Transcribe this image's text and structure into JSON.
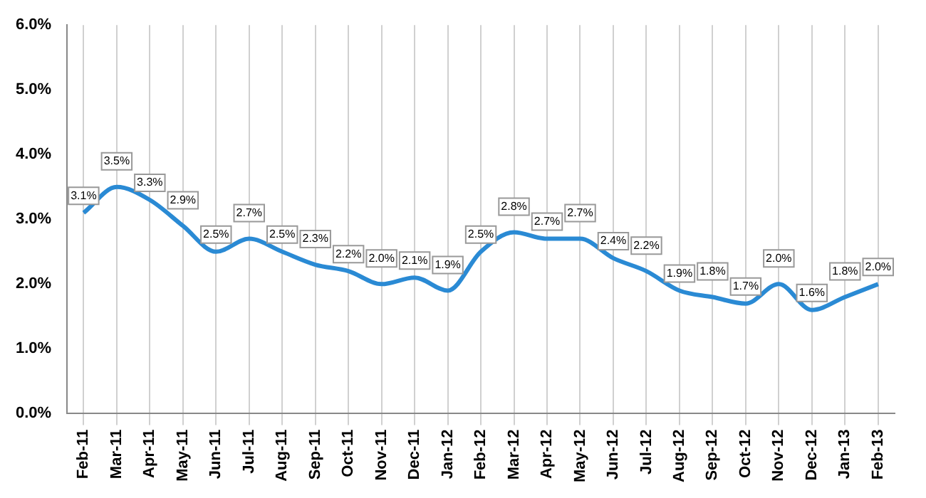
{
  "chart_data": {
    "type": "line",
    "categories": [
      "Feb-11",
      "Mar-11",
      "Apr-11",
      "May-11",
      "Jun-11",
      "Jul-11",
      "Aug-11",
      "Sep-11",
      "Oct-11",
      "Nov-11",
      "Dec-11",
      "Jan-12",
      "Feb-12",
      "Mar-12",
      "Apr-12",
      "May-12",
      "Jun-12",
      "Jul-12",
      "Aug-12",
      "Sep-12",
      "Oct-12",
      "Nov-12",
      "Dec-12",
      "Jan-13",
      "Feb-13"
    ],
    "series": [
      {
        "color": "#2a8ad4",
        "values": [
          3.1,
          3.5,
          3.3,
          2.9,
          2.5,
          2.7,
          2.5,
          2.3,
          2.2,
          2.0,
          2.1,
          1.9,
          2.5,
          2.8,
          2.7,
          2.7,
          2.4,
          2.2,
          1.9,
          1.8,
          1.7,
          2.0,
          1.6,
          1.8,
          2.0
        ],
        "value_labels": [
          "3.1%",
          "3.5%",
          "3.3%",
          "2.9%",
          "2.5%",
          "2.7%",
          "2.5%",
          "2.3%",
          "2.2%",
          "2.0%",
          "2.1%",
          "1.9%",
          "2.5%",
          "2.8%",
          "2.7%",
          "2.7%",
          "2.4%",
          "2.2%",
          "1.9%",
          "1.8%",
          "1.7%",
          "2.0%",
          "1.6%",
          "1.8%",
          "2.0%"
        ]
      }
    ],
    "ylim": [
      0,
      6
    ],
    "yticks": [
      {
        "value": 0,
        "label": "0.0%"
      },
      {
        "value": 1,
        "label": "1.0%"
      },
      {
        "value": 2,
        "label": "2.0%"
      },
      {
        "value": 3,
        "label": "3.0%"
      },
      {
        "value": 4,
        "label": "4.0%"
      },
      {
        "value": 5,
        "label": "5.0%"
      },
      {
        "value": 6,
        "label": "6.0%"
      }
    ],
    "grid": "x",
    "marker": "none",
    "line_style": "solid",
    "legend": false
  }
}
